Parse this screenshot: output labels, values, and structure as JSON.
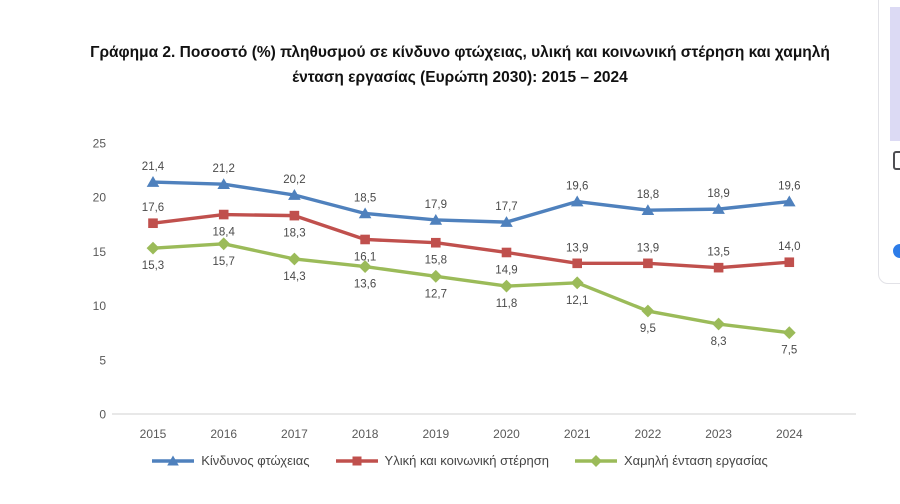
{
  "title": {
    "line1": "Γράφημα 2. Ποσοστό (%) πληθυσμού σε κίνδυνο φτώχειας, υλική και κοινωνική στέρηση και χαμηλή",
    "line2": "ένταση εργασίας (Ευρώπη 2030): 2015 – 2024"
  },
  "chart_data": {
    "type": "line",
    "categories": [
      "2015",
      "2016",
      "2017",
      "2018",
      "2019",
      "2020",
      "2021",
      "2022",
      "2023",
      "2024"
    ],
    "series": [
      {
        "name": "Κίνδυνος φτώχειας",
        "color": "#4F81BD",
        "marker": "triangle",
        "values": [
          21.4,
          21.2,
          20.2,
          18.5,
          17.9,
          17.7,
          19.6,
          18.8,
          18.9,
          19.6
        ],
        "labels": [
          "21,4",
          "21,2",
          "20,2",
          "18,5",
          "17,9",
          "17,7",
          "19,6",
          "18,8",
          "18,9",
          "19,6"
        ],
        "label_positions": [
          "above",
          "above",
          "above",
          "above",
          "above",
          "above",
          "above",
          "above",
          "above",
          "above"
        ]
      },
      {
        "name": "Υλική και κοινωνική στέρηση",
        "color": "#C0504D",
        "marker": "square",
        "values": [
          17.6,
          18.4,
          18.3,
          16.1,
          15.8,
          14.9,
          13.9,
          13.9,
          13.5,
          14.0
        ],
        "labels": [
          "17,6",
          "18,4",
          "18,3",
          "16,1",
          "15,8",
          "14,9",
          "13,9",
          "13,9",
          "13,5",
          "14,0"
        ],
        "label_positions": [
          "above",
          "below",
          "below",
          "below",
          "below",
          "below",
          "above",
          "above",
          "above",
          "above"
        ]
      },
      {
        "name": "Χαμηλή ένταση εργασίας",
        "color": "#9BBB59",
        "marker": "diamond",
        "values": [
          15.3,
          15.7,
          14.3,
          13.6,
          12.7,
          11.8,
          12.1,
          9.5,
          8.3,
          7.5
        ],
        "labels": [
          "15,3",
          "15,7",
          "14,3",
          "13,6",
          "12,7",
          "11,8",
          "12,1",
          "9,5",
          "8,3",
          "7,5"
        ],
        "label_positions": [
          "below",
          "below",
          "below",
          "below",
          "below",
          "below",
          "below",
          "below",
          "below",
          "below"
        ]
      }
    ],
    "ylim": [
      0,
      25
    ],
    "yticks": [
      0,
      5,
      10,
      15,
      20,
      25
    ],
    "xlabel": "",
    "ylabel": "",
    "grid": "off",
    "legend_position": "bottom",
    "axis_color": "#d9d9d9",
    "tick_color": "#595959",
    "data_label_color": "#4a4a4a"
  },
  "side_panel": {
    "accent_bar_color": "#dcdaf4",
    "icon": "clipboard-icon",
    "dot_color": "#2d7ce8"
  }
}
